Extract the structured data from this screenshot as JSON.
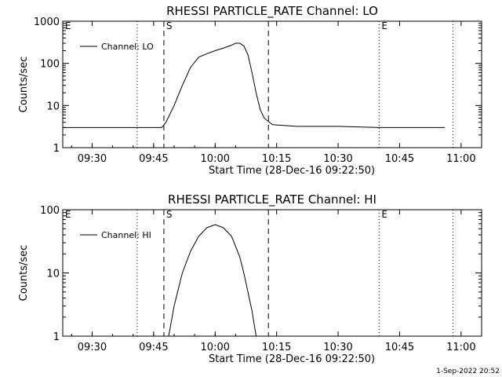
{
  "chart_data": [
    {
      "type": "line",
      "title": "RHESSI PARTICLE_RATE Channel: LO",
      "xlabel": "Start Time (28-Dec-16 09:22:50)",
      "ylabel": "Counts/sec",
      "y_scale": "log",
      "ylim": [
        1,
        1000
      ],
      "xlim": [
        "09:22:50",
        "11:05:00"
      ],
      "x_ticks": [
        "09:30",
        "09:45",
        "10:00",
        "10:15",
        "10:30",
        "10:45",
        "11:00"
      ],
      "y_ticks": [
        "1",
        "10",
        "100",
        "1000"
      ],
      "legend": {
        "entries": [
          "Channel: LO"
        ],
        "position": "top-left"
      },
      "markers": [
        {
          "label": "E",
          "time": "09:22:50",
          "style": "dotted"
        },
        {
          "label": "",
          "time": "09:41:00",
          "style": "dotted"
        },
        {
          "label": "S",
          "time": "09:47:30",
          "style": "dashed"
        },
        {
          "label": "",
          "time": "10:13:00",
          "style": "dashed"
        },
        {
          "label": "E",
          "time": "10:40:00",
          "style": "dotted"
        },
        {
          "label": "",
          "time": "10:58:00",
          "style": "dotted"
        }
      ],
      "series": [
        {
          "name": "Channel: LO",
          "x": [
            "09:22:50",
            "09:30:00",
            "09:40:00",
            "09:47:00",
            "09:48:00",
            "09:50:00",
            "09:52:00",
            "09:54:00",
            "09:56:00",
            "09:58:00",
            "10:00:00",
            "10:02:00",
            "10:04:00",
            "10:05:00",
            "10:06:00",
            "10:07:00",
            "10:08:00",
            "10:09:00",
            "10:10:00",
            "10:11:00",
            "10:12:00",
            "10:14:00",
            "10:20:00",
            "10:30:00",
            "10:40:00",
            "10:45:00",
            "10:50:00",
            "10:56:00"
          ],
          "y": [
            3,
            3,
            3,
            3,
            4,
            10,
            30,
            80,
            140,
            170,
            200,
            230,
            270,
            300,
            300,
            260,
            160,
            60,
            20,
            8,
            5,
            3.5,
            3.2,
            3.2,
            3,
            3,
            3,
            3
          ]
        }
      ]
    },
    {
      "type": "line",
      "title": "RHESSI PARTICLE_RATE Channel: HI",
      "xlabel": "Start Time (28-Dec-16 09:22:50)",
      "ylabel": "Counts/sec",
      "y_scale": "log",
      "ylim": [
        1,
        100
      ],
      "xlim": [
        "09:22:50",
        "11:05:00"
      ],
      "x_ticks": [
        "09:30",
        "09:45",
        "10:00",
        "10:15",
        "10:30",
        "10:45",
        "11:00"
      ],
      "y_ticks": [
        "1",
        "10",
        "100"
      ],
      "legend": {
        "entries": [
          "Channel: HI"
        ],
        "position": "top-left"
      },
      "markers": [
        {
          "label": "E",
          "time": "09:22:50",
          "style": "dotted"
        },
        {
          "label": "",
          "time": "09:41:00",
          "style": "dotted"
        },
        {
          "label": "S",
          "time": "09:47:30",
          "style": "dashed"
        },
        {
          "label": "",
          "time": "10:13:00",
          "style": "dashed"
        },
        {
          "label": "E",
          "time": "10:40:00",
          "style": "dotted"
        },
        {
          "label": "",
          "time": "10:58:00",
          "style": "dotted"
        }
      ],
      "series": [
        {
          "name": "Channel: HI",
          "x": [
            "09:48:40",
            "09:50:00",
            "09:52:00",
            "09:54:00",
            "09:56:00",
            "09:58:00",
            "10:00:00",
            "10:02:00",
            "10:04:00",
            "10:06:00",
            "10:07:00",
            "10:08:00",
            "10:09:00",
            "10:10:00"
          ],
          "y": [
            1,
            3,
            10,
            22,
            38,
            52,
            58,
            52,
            38,
            18,
            10,
            5,
            2.5,
            1
          ]
        }
      ]
    }
  ],
  "footer": {
    "timestamp": "1-Sep-2022 20:52"
  }
}
